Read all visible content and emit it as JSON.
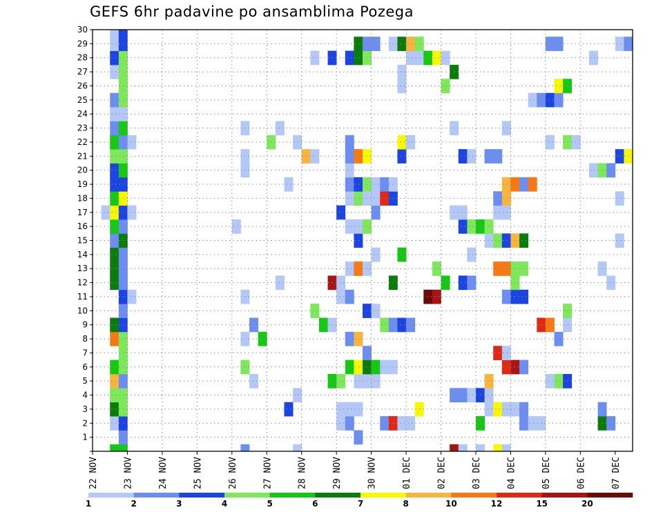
{
  "chart_data": {
    "type": "heatmap",
    "title": "GEFS 6hr padavine po ansamblima Pozega",
    "xlabel": "",
    "ylabel": "",
    "x_tick_labels": [
      "22 NOV",
      "23 NOV",
      "24 NOV",
      "25 NOV",
      "26 NOV",
      "27 NOV",
      "28 NOV",
      "29 NOV",
      "30 NOV",
      "01 DEC",
      "02 DEC",
      "03 DEC",
      "04 DEC",
      "05 DEC",
      "06 DEC",
      "07 DEC"
    ],
    "y_tick_labels": [
      "1",
      "2",
      "3",
      "4",
      "5",
      "6",
      "7",
      "8",
      "9",
      "10",
      "11",
      "12",
      "13",
      "14",
      "15",
      "16",
      "17",
      "18",
      "19",
      "20",
      "21",
      "22",
      "23",
      "24",
      "25",
      "26",
      "27",
      "28",
      "29",
      "30"
    ],
    "xlim": [
      0,
      62
    ],
    "ylim": [
      0,
      30
    ],
    "x_unit": "6-hour step from 22 NOV 00Z",
    "grid": true,
    "colorbar": {
      "ticks": [
        "1",
        "2",
        "3",
        "4",
        "5",
        "6",
        "7",
        "8",
        "10",
        "12",
        "15",
        "20"
      ],
      "colors": [
        "#b4c8f8",
        "#6b8ef0",
        "#1c44e0",
        "#7ce85a",
        "#14c814",
        "#0a7c0a",
        "#f8f800",
        "#f8b43c",
        "#f87814",
        "#e02814",
        "#a81414",
        "#6c0a0a"
      ]
    },
    "cells": [
      {
        "x": 2,
        "y": 0,
        "c": 5
      },
      {
        "x": 3,
        "y": 0,
        "c": 5
      },
      {
        "x": 3,
        "y": 1,
        "c": 2
      },
      {
        "x": 2,
        "y": 2,
        "c": 1
      },
      {
        "x": 3,
        "y": 2,
        "c": 3
      },
      {
        "x": 2,
        "y": 3,
        "c": 6
      },
      {
        "x": 3,
        "y": 3,
        "c": 4
      },
      {
        "x": 2,
        "y": 4,
        "c": 4
      },
      {
        "x": 3,
        "y": 4,
        "c": 4
      },
      {
        "x": 2,
        "y": 5,
        "c": 8
      },
      {
        "x": 3,
        "y": 5,
        "c": 2
      },
      {
        "x": 2,
        "y": 6,
        "c": 5
      },
      {
        "x": 3,
        "y": 6,
        "c": 4
      },
      {
        "x": 3,
        "y": 7,
        "c": 4
      },
      {
        "x": 2,
        "y": 8,
        "c": 9
      },
      {
        "x": 3,
        "y": 8,
        "c": 4
      },
      {
        "x": 2,
        "y": 9,
        "c": 6
      },
      {
        "x": 3,
        "y": 9,
        "c": 3
      },
      {
        "x": 3,
        "y": 10,
        "c": 2
      },
      {
        "x": 3,
        "y": 11,
        "c": 3
      },
      {
        "x": 4,
        "y": 11,
        "c": 1
      },
      {
        "x": 2,
        "y": 12,
        "c": 6
      },
      {
        "x": 3,
        "y": 12,
        "c": 2
      },
      {
        "x": 2,
        "y": 13,
        "c": 6
      },
      {
        "x": 3,
        "y": 13,
        "c": 2
      },
      {
        "x": 2,
        "y": 14,
        "c": 6
      },
      {
        "x": 3,
        "y": 14,
        "c": 2
      },
      {
        "x": 2,
        "y": 15,
        "c": 2
      },
      {
        "x": 3,
        "y": 15,
        "c": 6
      },
      {
        "x": 2,
        "y": 16,
        "c": 5
      },
      {
        "x": 3,
        "y": 16,
        "c": 2
      },
      {
        "x": 1,
        "y": 17,
        "c": 1
      },
      {
        "x": 2,
        "y": 17,
        "c": 7
      },
      {
        "x": 3,
        "y": 17,
        "c": 3
      },
      {
        "x": 4,
        "y": 17,
        "c": 1
      },
      {
        "x": 2,
        "y": 18,
        "c": 5
      },
      {
        "x": 3,
        "y": 18,
        "c": 7
      },
      {
        "x": 2,
        "y": 19,
        "c": 3
      },
      {
        "x": 3,
        "y": 19,
        "c": 3
      },
      {
        "x": 2,
        "y": 20,
        "c": 3
      },
      {
        "x": 3,
        "y": 20,
        "c": 5
      },
      {
        "x": 2,
        "y": 21,
        "c": 4
      },
      {
        "x": 3,
        "y": 21,
        "c": 4
      },
      {
        "x": 2,
        "y": 22,
        "c": 5
      },
      {
        "x": 3,
        "y": 22,
        "c": 2
      },
      {
        "x": 4,
        "y": 22,
        "c": 1
      },
      {
        "x": 2,
        "y": 23,
        "c": 2
      },
      {
        "x": 3,
        "y": 23,
        "c": 5
      },
      {
        "x": 2,
        "y": 24,
        "c": 1
      },
      {
        "x": 3,
        "y": 24,
        "c": 1
      },
      {
        "x": 2,
        "y": 25,
        "c": 2
      },
      {
        "x": 3,
        "y": 25,
        "c": 4
      },
      {
        "x": 3,
        "y": 26,
        "c": 4
      },
      {
        "x": 2,
        "y": 27,
        "c": 1
      },
      {
        "x": 3,
        "y": 27,
        "c": 4
      },
      {
        "x": 2,
        "y": 28,
        "c": 3
      },
      {
        "x": 3,
        "y": 28,
        "c": 4
      },
      {
        "x": 2,
        "y": 29,
        "c": 1
      },
      {
        "x": 3,
        "y": 29,
        "c": 3
      },
      {
        "x": 2,
        "y": 30,
        "c": 1
      },
      {
        "x": 3,
        "y": 30,
        "c": 3
      },
      {
        "x": 17,
        "y": 0,
        "c": 2
      },
      {
        "x": 23,
        "y": 0,
        "c": 1
      },
      {
        "x": 41,
        "y": 0,
        "c": 11
      },
      {
        "x": 42,
        "y": 0,
        "c": 1
      },
      {
        "x": 44,
        "y": 0,
        "c": 1
      },
      {
        "x": 46,
        "y": 0,
        "c": 7
      },
      {
        "x": 47,
        "y": 0,
        "c": 1
      },
      {
        "x": 30,
        "y": 1,
        "c": 2
      },
      {
        "x": 28,
        "y": 2,
        "c": 1
      },
      {
        "x": 29,
        "y": 2,
        "c": 2
      },
      {
        "x": 33,
        "y": 2,
        "c": 2
      },
      {
        "x": 34,
        "y": 2,
        "c": 10
      },
      {
        "x": 35,
        "y": 2,
        "c": 1
      },
      {
        "x": 36,
        "y": 2,
        "c": 1
      },
      {
        "x": 44,
        "y": 2,
        "c": 5
      },
      {
        "x": 49,
        "y": 2,
        "c": 2
      },
      {
        "x": 50,
        "y": 2,
        "c": 1
      },
      {
        "x": 51,
        "y": 2,
        "c": 1
      },
      {
        "x": 58,
        "y": 2,
        "c": 6
      },
      {
        "x": 59,
        "y": 2,
        "c": 2
      },
      {
        "x": 22,
        "y": 3,
        "c": 3
      },
      {
        "x": 28,
        "y": 3,
        "c": 1
      },
      {
        "x": 29,
        "y": 3,
        "c": 1
      },
      {
        "x": 30,
        "y": 3,
        "c": 1
      },
      {
        "x": 37,
        "y": 3,
        "c": 7
      },
      {
        "x": 45,
        "y": 3,
        "c": 1
      },
      {
        "x": 46,
        "y": 3,
        "c": 7
      },
      {
        "x": 47,
        "y": 3,
        "c": 1
      },
      {
        "x": 48,
        "y": 3,
        "c": 1
      },
      {
        "x": 49,
        "y": 3,
        "c": 2
      },
      {
        "x": 58,
        "y": 3,
        "c": 2
      },
      {
        "x": 23,
        "y": 4,
        "c": 1
      },
      {
        "x": 41,
        "y": 4,
        "c": 2
      },
      {
        "x": 42,
        "y": 4,
        "c": 2
      },
      {
        "x": 43,
        "y": 4,
        "c": 1
      },
      {
        "x": 44,
        "y": 4,
        "c": 3
      },
      {
        "x": 45,
        "y": 4,
        "c": 1
      },
      {
        "x": 18,
        "y": 5,
        "c": 1
      },
      {
        "x": 27,
        "y": 5,
        "c": 5
      },
      {
        "x": 28,
        "y": 5,
        "c": 4
      },
      {
        "x": 30,
        "y": 5,
        "c": 1
      },
      {
        "x": 31,
        "y": 5,
        "c": 1
      },
      {
        "x": 32,
        "y": 5,
        "c": 1
      },
      {
        "x": 45,
        "y": 5,
        "c": 8
      },
      {
        "x": 52,
        "y": 5,
        "c": 1
      },
      {
        "x": 53,
        "y": 5,
        "c": 4
      },
      {
        "x": 54,
        "y": 5,
        "c": 3
      },
      {
        "x": 17,
        "y": 6,
        "c": 4
      },
      {
        "x": 29,
        "y": 6,
        "c": 5
      },
      {
        "x": 30,
        "y": 6,
        "c": 7
      },
      {
        "x": 31,
        "y": 6,
        "c": 6
      },
      {
        "x": 32,
        "y": 6,
        "c": 5
      },
      {
        "x": 33,
        "y": 6,
        "c": 1
      },
      {
        "x": 34,
        "y": 6,
        "c": 1
      },
      {
        "x": 47,
        "y": 6,
        "c": 10
      },
      {
        "x": 48,
        "y": 6,
        "c": 11
      },
      {
        "x": 49,
        "y": 6,
        "c": 2
      },
      {
        "x": 31,
        "y": 7,
        "c": 2
      },
      {
        "x": 46,
        "y": 7,
        "c": 10
      },
      {
        "x": 47,
        "y": 7,
        "c": 1
      },
      {
        "x": 17,
        "y": 8,
        "c": 1
      },
      {
        "x": 19,
        "y": 8,
        "c": 5
      },
      {
        "x": 29,
        "y": 8,
        "c": 2
      },
      {
        "x": 30,
        "y": 8,
        "c": 8
      },
      {
        "x": 53,
        "y": 8,
        "c": 2
      },
      {
        "x": 18,
        "y": 9,
        "c": 2
      },
      {
        "x": 26,
        "y": 9,
        "c": 5
      },
      {
        "x": 27,
        "y": 9,
        "c": 1
      },
      {
        "x": 33,
        "y": 9,
        "c": 4
      },
      {
        "x": 34,
        "y": 9,
        "c": 2
      },
      {
        "x": 35,
        "y": 9,
        "c": 3
      },
      {
        "x": 36,
        "y": 9,
        "c": 2
      },
      {
        "x": 51,
        "y": 9,
        "c": 10
      },
      {
        "x": 52,
        "y": 9,
        "c": 9
      },
      {
        "x": 54,
        "y": 9,
        "c": 1
      },
      {
        "x": 25,
        "y": 10,
        "c": 4
      },
      {
        "x": 31,
        "y": 10,
        "c": 3
      },
      {
        "x": 32,
        "y": 10,
        "c": 1
      },
      {
        "x": 54,
        "y": 10,
        "c": 4
      },
      {
        "x": 17,
        "y": 11,
        "c": 1
      },
      {
        "x": 28,
        "y": 11,
        "c": 1
      },
      {
        "x": 29,
        "y": 11,
        "c": 2
      },
      {
        "x": 38,
        "y": 11,
        "c": 12
      },
      {
        "x": 39,
        "y": 11,
        "c": 11
      },
      {
        "x": 47,
        "y": 11,
        "c": 2
      },
      {
        "x": 48,
        "y": 11,
        "c": 3
      },
      {
        "x": 49,
        "y": 11,
        "c": 3
      },
      {
        "x": 21,
        "y": 12,
        "c": 1
      },
      {
        "x": 27,
        "y": 12,
        "c": 11
      },
      {
        "x": 28,
        "y": 12,
        "c": 1
      },
      {
        "x": 34,
        "y": 12,
        "c": 6
      },
      {
        "x": 40,
        "y": 12,
        "c": 5
      },
      {
        "x": 42,
        "y": 12,
        "c": 3
      },
      {
        "x": 43,
        "y": 12,
        "c": 2
      },
      {
        "x": 48,
        "y": 12,
        "c": 4
      },
      {
        "x": 59,
        "y": 12,
        "c": 1
      },
      {
        "x": 29,
        "y": 13,
        "c": 1
      },
      {
        "x": 30,
        "y": 13,
        "c": 9
      },
      {
        "x": 31,
        "y": 13,
        "c": 1
      },
      {
        "x": 39,
        "y": 13,
        "c": 4
      },
      {
        "x": 46,
        "y": 13,
        "c": 9
      },
      {
        "x": 47,
        "y": 13,
        "c": 9
      },
      {
        "x": 48,
        "y": 13,
        "c": 4
      },
      {
        "x": 49,
        "y": 13,
        "c": 4
      },
      {
        "x": 58,
        "y": 13,
        "c": 1
      },
      {
        "x": 32,
        "y": 14,
        "c": 1
      },
      {
        "x": 35,
        "y": 14,
        "c": 5
      },
      {
        "x": 43,
        "y": 14,
        "c": 1
      },
      {
        "x": 30,
        "y": 15,
        "c": 3
      },
      {
        "x": 45,
        "y": 15,
        "c": 1
      },
      {
        "x": 46,
        "y": 15,
        "c": 4
      },
      {
        "x": 47,
        "y": 15,
        "c": 3
      },
      {
        "x": 48,
        "y": 15,
        "c": 8
      },
      {
        "x": 49,
        "y": 15,
        "c": 6
      },
      {
        "x": 60,
        "y": 15,
        "c": 1
      },
      {
        "x": 16,
        "y": 16,
        "c": 1
      },
      {
        "x": 29,
        "y": 16,
        "c": 1
      },
      {
        "x": 30,
        "y": 16,
        "c": 1
      },
      {
        "x": 31,
        "y": 16,
        "c": 4
      },
      {
        "x": 42,
        "y": 16,
        "c": 3
      },
      {
        "x": 43,
        "y": 16,
        "c": 4
      },
      {
        "x": 44,
        "y": 16,
        "c": 5
      },
      {
        "x": 45,
        "y": 16,
        "c": 4
      },
      {
        "x": 28,
        "y": 17,
        "c": 3
      },
      {
        "x": 32,
        "y": 17,
        "c": 2
      },
      {
        "x": 41,
        "y": 17,
        "c": 1
      },
      {
        "x": 42,
        "y": 17,
        "c": 1
      },
      {
        "x": 46,
        "y": 17,
        "c": 1
      },
      {
        "x": 47,
        "y": 17,
        "c": 1
      },
      {
        "x": 29,
        "y": 18,
        "c": 1
      },
      {
        "x": 30,
        "y": 18,
        "c": 4
      },
      {
        "x": 31,
        "y": 18,
        "c": 1
      },
      {
        "x": 32,
        "y": 18,
        "c": 1
      },
      {
        "x": 33,
        "y": 18,
        "c": 10
      },
      {
        "x": 34,
        "y": 18,
        "c": 3
      },
      {
        "x": 46,
        "y": 18,
        "c": 2
      },
      {
        "x": 47,
        "y": 18,
        "c": 8
      },
      {
        "x": 60,
        "y": 18,
        "c": 1
      },
      {
        "x": 22,
        "y": 19,
        "c": 1
      },
      {
        "x": 29,
        "y": 19,
        "c": 2
      },
      {
        "x": 30,
        "y": 19,
        "c": 3
      },
      {
        "x": 31,
        "y": 19,
        "c": 4
      },
      {
        "x": 32,
        "y": 19,
        "c": 1
      },
      {
        "x": 33,
        "y": 19,
        "c": 2
      },
      {
        "x": 34,
        "y": 19,
        "c": 1
      },
      {
        "x": 47,
        "y": 19,
        "c": 8
      },
      {
        "x": 48,
        "y": 19,
        "c": 9
      },
      {
        "x": 49,
        "y": 19,
        "c": 2
      },
      {
        "x": 50,
        "y": 19,
        "c": 9
      },
      {
        "x": 17,
        "y": 20,
        "c": 1
      },
      {
        "x": 29,
        "y": 20,
        "c": 1
      },
      {
        "x": 57,
        "y": 20,
        "c": 1
      },
      {
        "x": 58,
        "y": 20,
        "c": 4
      },
      {
        "x": 59,
        "y": 20,
        "c": 2
      },
      {
        "x": 17,
        "y": 21,
        "c": 1
      },
      {
        "x": 24,
        "y": 21,
        "c": 8
      },
      {
        "x": 25,
        "y": 21,
        "c": 1
      },
      {
        "x": 29,
        "y": 21,
        "c": 2
      },
      {
        "x": 30,
        "y": 21,
        "c": 9
      },
      {
        "x": 31,
        "y": 21,
        "c": 7
      },
      {
        "x": 35,
        "y": 21,
        "c": 3
      },
      {
        "x": 42,
        "y": 21,
        "c": 3
      },
      {
        "x": 43,
        "y": 21,
        "c": 1
      },
      {
        "x": 45,
        "y": 21,
        "c": 2
      },
      {
        "x": 46,
        "y": 21,
        "c": 2
      },
      {
        "x": 60,
        "y": 21,
        "c": 3
      },
      {
        "x": 61,
        "y": 21,
        "c": 7
      },
      {
        "x": 20,
        "y": 22,
        "c": 4
      },
      {
        "x": 23,
        "y": 22,
        "c": 1
      },
      {
        "x": 29,
        "y": 22,
        "c": 2
      },
      {
        "x": 35,
        "y": 22,
        "c": 7
      },
      {
        "x": 36,
        "y": 22,
        "c": 1
      },
      {
        "x": 52,
        "y": 22,
        "c": 1
      },
      {
        "x": 54,
        "y": 22,
        "c": 4
      },
      {
        "x": 55,
        "y": 22,
        "c": 1
      },
      {
        "x": 17,
        "y": 23,
        "c": 1
      },
      {
        "x": 21,
        "y": 23,
        "c": 1
      },
      {
        "x": 41,
        "y": 23,
        "c": 1
      },
      {
        "x": 47,
        "y": 23,
        "c": 1
      },
      {
        "x": 50,
        "y": 25,
        "c": 1
      },
      {
        "x": 51,
        "y": 25,
        "c": 2
      },
      {
        "x": 52,
        "y": 25,
        "c": 3
      },
      {
        "x": 53,
        "y": 25,
        "c": 2
      },
      {
        "x": 35,
        "y": 26,
        "c": 1
      },
      {
        "x": 40,
        "y": 26,
        "c": 4
      },
      {
        "x": 53,
        "y": 26,
        "c": 7
      },
      {
        "x": 54,
        "y": 26,
        "c": 5
      },
      {
        "x": 35,
        "y": 27,
        "c": 1
      },
      {
        "x": 41,
        "y": 27,
        "c": 6
      },
      {
        "x": 25,
        "y": 28,
        "c": 1
      },
      {
        "x": 27,
        "y": 28,
        "c": 3
      },
      {
        "x": 29,
        "y": 28,
        "c": 3
      },
      {
        "x": 30,
        "y": 28,
        "c": 6
      },
      {
        "x": 31,
        "y": 28,
        "c": 4
      },
      {
        "x": 36,
        "y": 28,
        "c": 1
      },
      {
        "x": 37,
        "y": 28,
        "c": 1
      },
      {
        "x": 38,
        "y": 28,
        "c": 5
      },
      {
        "x": 39,
        "y": 28,
        "c": 7
      },
      {
        "x": 40,
        "y": 28,
        "c": 1
      },
      {
        "x": 57,
        "y": 28,
        "c": 1
      },
      {
        "x": 30,
        "y": 29,
        "c": 6
      },
      {
        "x": 31,
        "y": 29,
        "c": 2
      },
      {
        "x": 32,
        "y": 29,
        "c": 2
      },
      {
        "x": 34,
        "y": 29,
        "c": 1
      },
      {
        "x": 35,
        "y": 29,
        "c": 6
      },
      {
        "x": 36,
        "y": 29,
        "c": 8
      },
      {
        "x": 37,
        "y": 29,
        "c": 4
      },
      {
        "x": 52,
        "y": 29,
        "c": 2
      },
      {
        "x": 53,
        "y": 29,
        "c": 2
      },
      {
        "x": 60,
        "y": 29,
        "c": 1
      },
      {
        "x": 61,
        "y": 29,
        "c": 2
      }
    ]
  }
}
